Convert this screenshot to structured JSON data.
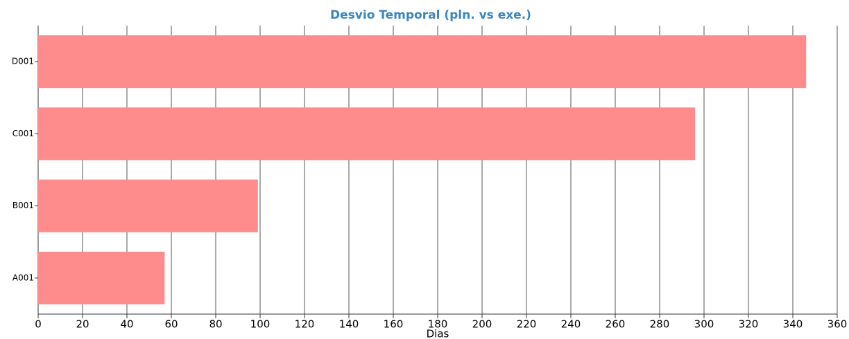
{
  "chart_data": {
    "type": "barh",
    "title": "Desvio Temporal (pln. vs exe.)",
    "x_label": "Dias",
    "categories": [
      "A001",
      "B001",
      "C001",
      "D001"
    ],
    "values": [
      57,
      99,
      296,
      346
    ],
    "color": "#ff8c8c",
    "xlim": [
      0,
      360
    ],
    "xticks": [
      0,
      20,
      40,
      60,
      80,
      100,
      120,
      140,
      160,
      180,
      200,
      220,
      240,
      260,
      280,
      300,
      320,
      340,
      360
    ],
    "grid": true
  }
}
